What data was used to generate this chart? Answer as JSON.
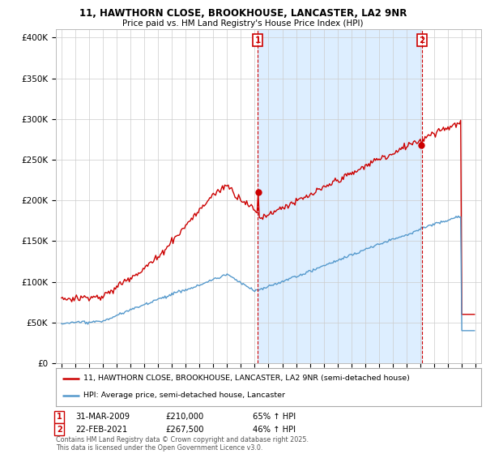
{
  "title1": "11, HAWTHORN CLOSE, BROOKHOUSE, LANCASTER, LA2 9NR",
  "title2": "Price paid vs. HM Land Registry's House Price Index (HPI)",
  "legend_line1": "11, HAWTHORN CLOSE, BROOKHOUSE, LANCASTER, LA2 9NR (semi-detached house)",
  "legend_line2": "HPI: Average price, semi-detached house, Lancaster",
  "footer": "Contains HM Land Registry data © Crown copyright and database right 2025.\nThis data is licensed under the Open Government Licence v3.0.",
  "red_color": "#cc0000",
  "blue_color": "#5599cc",
  "shade_color": "#ddeeff",
  "annotation1": {
    "num": "1",
    "date": "31-MAR-2009",
    "price": "£210,000",
    "hpi": "65% ↑ HPI"
  },
  "annotation2": {
    "num": "2",
    "date": "22-FEB-2021",
    "price": "£267,500",
    "hpi": "46% ↑ HPI"
  },
  "sale1_year": 2009.21,
  "sale2_year": 2021.12,
  "sale1_price_red": 210000,
  "sale2_price_red": 267500,
  "ylim": [
    0,
    410000
  ],
  "yticks": [
    0,
    50000,
    100000,
    150000,
    200000,
    250000,
    300000,
    350000,
    400000
  ],
  "xlim_left": 1994.6,
  "xlim_right": 2025.4,
  "background_color": "#ffffff",
  "grid_color": "#cccccc"
}
